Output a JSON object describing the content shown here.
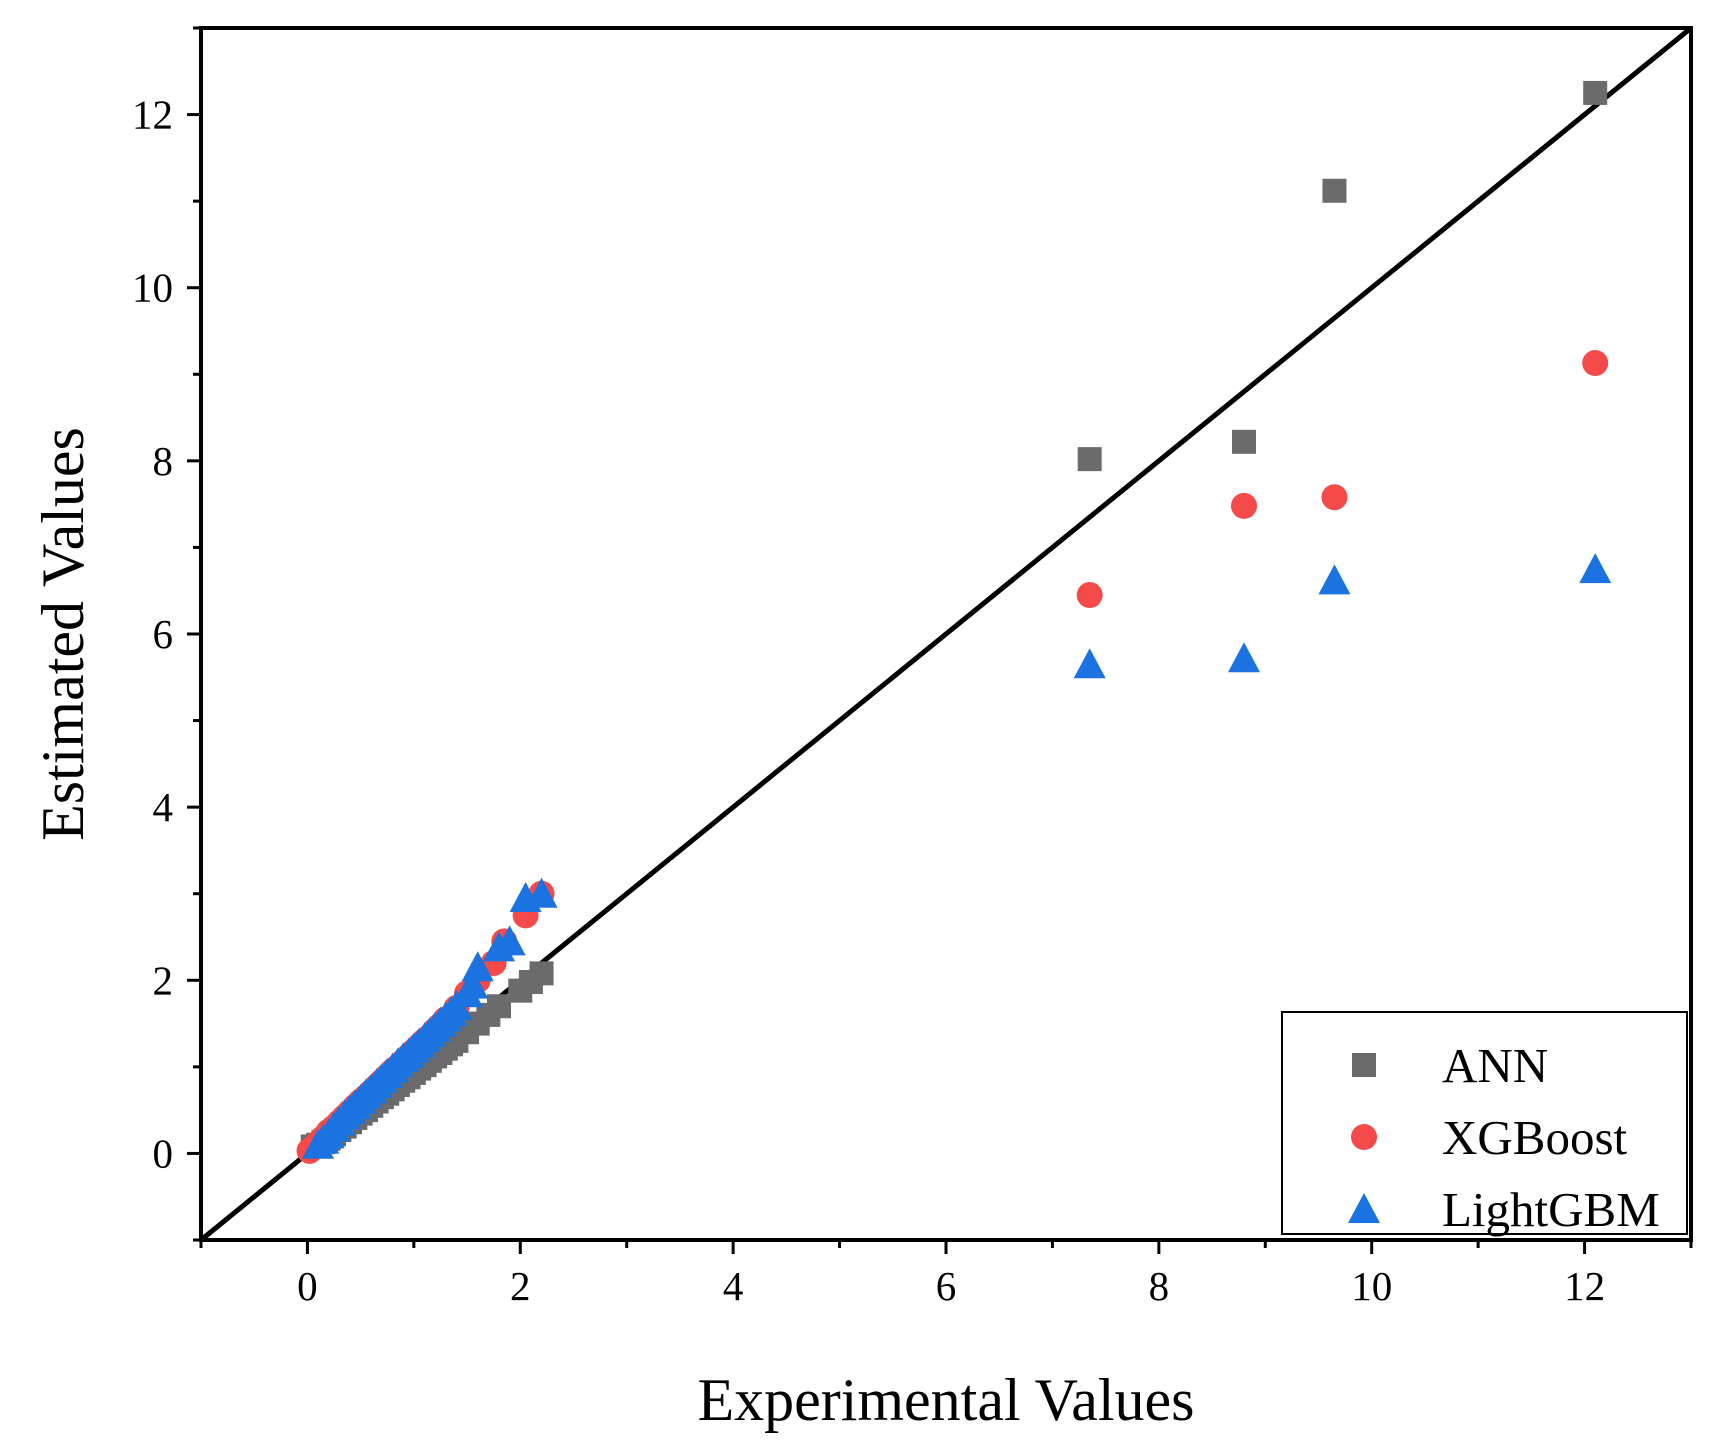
{
  "chart_data": {
    "type": "scatter",
    "title": "",
    "xlabel": "Experimental Values",
    "ylabel": "Estimated Values",
    "xlim": [
      -1,
      13
    ],
    "ylim": [
      -1,
      13
    ],
    "xticks": [
      "0",
      "2",
      "4",
      "6",
      "8",
      "10",
      "12"
    ],
    "yticks": [
      "0",
      "2",
      "4",
      "6",
      "8",
      "10",
      "12"
    ],
    "reference_line": {
      "name": "y = x",
      "color": "#000000"
    },
    "legend_position": "bottom-right",
    "series": [
      {
        "name": "ANN",
        "marker": "square",
        "color": "#6b6b6b",
        "x": [
          0.05,
          0.1,
          0.15,
          0.2,
          0.25,
          0.3,
          0.35,
          0.4,
          0.45,
          0.5,
          0.55,
          0.6,
          0.65,
          0.7,
          0.75,
          0.8,
          0.85,
          0.9,
          0.95,
          1.0,
          1.05,
          1.1,
          1.15,
          1.2,
          1.25,
          1.3,
          1.35,
          1.4,
          1.5,
          1.6,
          1.7,
          1.8,
          2.0,
          2.1,
          2.2,
          7.35,
          8.8,
          9.65,
          12.1
        ],
        "y": [
          0.08,
          0.1,
          0.13,
          0.17,
          0.22,
          0.27,
          0.31,
          0.36,
          0.41,
          0.46,
          0.5,
          0.55,
          0.6,
          0.65,
          0.69,
          0.74,
          0.79,
          0.84,
          0.88,
          0.93,
          0.98,
          1.02,
          1.07,
          1.12,
          1.16,
          1.21,
          1.26,
          1.3,
          1.4,
          1.5,
          1.6,
          1.7,
          1.88,
          1.98,
          2.08,
          8.02,
          8.22,
          11.12,
          12.25
        ]
      },
      {
        "name": "XGBoost",
        "marker": "circle",
        "color": "#f44a4a",
        "x": [
          0.02,
          0.05,
          0.1,
          0.15,
          0.2,
          0.25,
          0.3,
          0.35,
          0.4,
          0.45,
          0.5,
          0.55,
          0.6,
          0.65,
          0.7,
          0.75,
          0.8,
          0.85,
          0.9,
          0.95,
          1.0,
          1.05,
          1.1,
          1.15,
          1.2,
          1.25,
          1.3,
          1.4,
          1.5,
          1.6,
          1.75,
          1.85,
          2.05,
          2.2,
          7.35,
          8.8,
          9.65,
          12.1
        ],
        "y": [
          0.03,
          0.06,
          0.12,
          0.18,
          0.25,
          0.3,
          0.36,
          0.42,
          0.48,
          0.54,
          0.6,
          0.65,
          0.71,
          0.77,
          0.83,
          0.89,
          0.95,
          1.0,
          1.06,
          1.12,
          1.18,
          1.24,
          1.3,
          1.35,
          1.42,
          1.48,
          1.55,
          1.68,
          1.85,
          2.0,
          2.2,
          2.45,
          2.75,
          3.0,
          6.45,
          7.48,
          7.58,
          9.13
        ]
      },
      {
        "name": "LightGBM",
        "marker": "triangle",
        "color": "#1a73e0",
        "x": [
          0.1,
          0.15,
          0.2,
          0.25,
          0.3,
          0.35,
          0.4,
          0.45,
          0.5,
          0.55,
          0.6,
          0.65,
          0.7,
          0.75,
          0.8,
          0.85,
          0.9,
          0.95,
          1.0,
          1.05,
          1.1,
          1.15,
          1.2,
          1.25,
          1.3,
          1.35,
          1.4,
          1.5,
          1.55,
          1.6,
          1.8,
          1.9,
          2.05,
          2.2,
          7.35,
          8.8,
          9.65,
          12.1
        ],
        "y": [
          0.1,
          0.16,
          0.22,
          0.3,
          0.37,
          0.44,
          0.5,
          0.56,
          0.62,
          0.68,
          0.74,
          0.8,
          0.86,
          0.92,
          0.98,
          1.04,
          1.1,
          1.15,
          1.21,
          1.27,
          1.33,
          1.39,
          1.45,
          1.51,
          1.57,
          1.63,
          1.7,
          1.85,
          1.95,
          2.15,
          2.38,
          2.45,
          2.95,
          3.0,
          5.65,
          5.72,
          6.62,
          6.75
        ]
      }
    ]
  }
}
